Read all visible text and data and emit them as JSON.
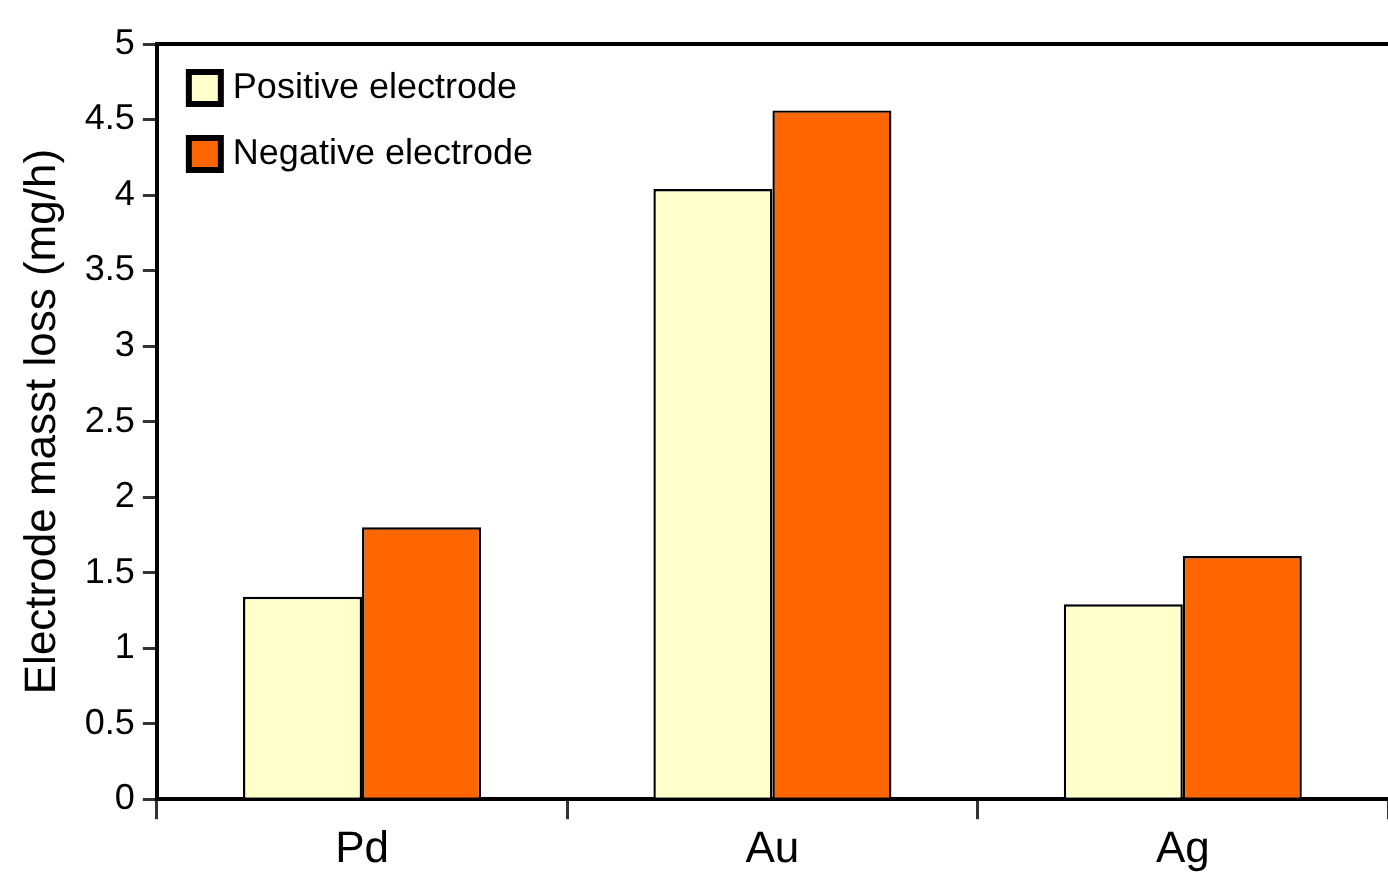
{
  "chart_data": {
    "type": "bar",
    "ylabel": "Electrode masst loss (mg/h)",
    "categories": [
      "Pd",
      "Au",
      "Ag"
    ],
    "series": [
      {
        "name": "Positive electrode",
        "color": "#ffffcc",
        "values": [
          1.34,
          4.04,
          1.29
        ]
      },
      {
        "name": "Negative electrode",
        "color": "#ff6600",
        "values": [
          1.8,
          4.56,
          1.61
        ]
      }
    ],
    "ylim": [
      0,
      5
    ],
    "yticks": [
      0,
      0.5,
      1,
      1.5,
      2,
      2.5,
      3,
      3.5,
      4,
      4.5,
      5
    ],
    "grid": false,
    "legend": "top left"
  }
}
